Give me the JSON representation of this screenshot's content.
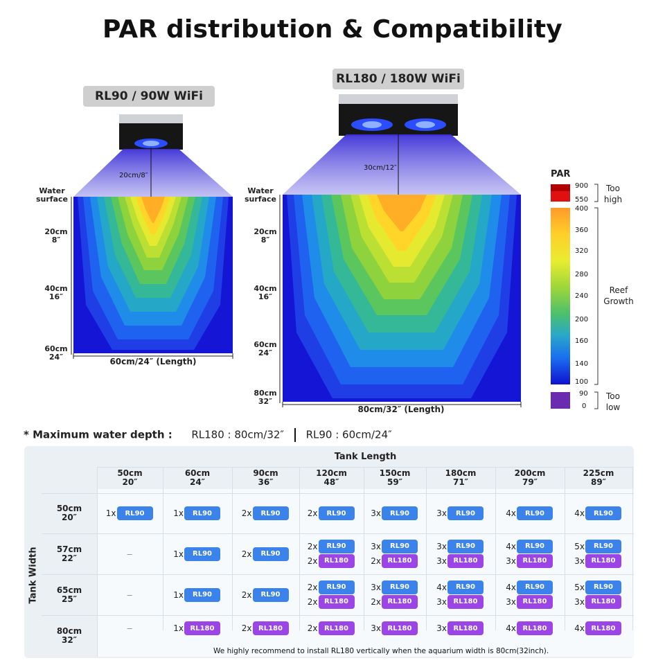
{
  "title": "PAR distribution & Compatibility",
  "left_panel": {
    "model_label": "RL90 / 90W WiFi",
    "beam_label": "20cm/8″",
    "surface_label": [
      "Water",
      "surface"
    ],
    "depth_labels": [
      [
        "20cm",
        "8″"
      ],
      [
        "40cm",
        "16″"
      ],
      [
        "60cm",
        "24″"
      ]
    ],
    "length_label": "60cm/24″ (Length)"
  },
  "right_panel": {
    "model_label": "RL180 / 180W WiFi",
    "beam_label": "30cm/12″",
    "surface_label": [
      "Water",
      "surface"
    ],
    "depth_labels": [
      [
        "20cm",
        "8″"
      ],
      [
        "40cm",
        "16″"
      ],
      [
        "60cm",
        "24″"
      ],
      [
        "80cm",
        "32″"
      ]
    ],
    "length_label": "80cm/32″ (Length)"
  },
  "legend": {
    "title": "PAR",
    "high_ticks": [
      "900",
      "550"
    ],
    "ticks": [
      "400",
      "360",
      "320",
      "280",
      "240",
      "200",
      "160",
      "140",
      "100"
    ],
    "low_ticks": [
      "90",
      "0"
    ],
    "too_high": [
      "Too",
      "high"
    ],
    "reef": [
      "Reef",
      "Growth"
    ],
    "too_low": [
      "Too",
      "low"
    ]
  },
  "depth_note": {
    "label": "* Maximum water depth :",
    "rl180": "RL180 : 80cm/32″",
    "rl90": "RL90 : 60cm/24″"
  },
  "table": {
    "length_header": "Tank Length",
    "width_header": "Tank Width",
    "columns": [
      [
        "50cm",
        "20″"
      ],
      [
        "60cm",
        "24″"
      ],
      [
        "90cm",
        "36″"
      ],
      [
        "120cm",
        "48″"
      ],
      [
        "150cm",
        "59″"
      ],
      [
        "180cm",
        "71″"
      ],
      [
        "200cm",
        "79″"
      ],
      [
        "225cm",
        "89″"
      ]
    ],
    "rows": [
      {
        "label": [
          "50cm",
          "20″"
        ],
        "cells": [
          [
            [
              "1x",
              "RL90"
            ]
          ],
          [
            [
              "1x",
              "RL90"
            ]
          ],
          [
            [
              "2x",
              "RL90"
            ]
          ],
          [
            [
              "2x",
              "RL90"
            ]
          ],
          [
            [
              "3x",
              "RL90"
            ]
          ],
          [
            [
              "3x",
              "RL90"
            ]
          ],
          [
            [
              "4x",
              "RL90"
            ]
          ],
          [
            [
              "4x",
              "RL90"
            ]
          ]
        ]
      },
      {
        "label": [
          "57cm",
          "22″"
        ],
        "cells": [
          [],
          [
            [
              "1x",
              "RL90"
            ]
          ],
          [
            [
              "2x",
              "RL90"
            ]
          ],
          [
            [
              "2x",
              "RL90"
            ],
            [
              "2x",
              "RL180"
            ]
          ],
          [
            [
              "3x",
              "RL90"
            ],
            [
              "2x",
              "RL180"
            ]
          ],
          [
            [
              "3x",
              "RL90"
            ],
            [
              "3x",
              "RL180"
            ]
          ],
          [
            [
              "4x",
              "RL90"
            ],
            [
              "3x",
              "RL180"
            ]
          ],
          [
            [
              "5x",
              "RL90"
            ],
            [
              "3x",
              "RL180"
            ]
          ]
        ]
      },
      {
        "label": [
          "65cm",
          "25″"
        ],
        "cells": [
          [],
          [
            [
              "1x",
              "RL90"
            ]
          ],
          [
            [
              "2x",
              "RL90"
            ]
          ],
          [
            [
              "2x",
              "RL90"
            ],
            [
              "2x",
              "RL180"
            ]
          ],
          [
            [
              "3x",
              "RL90"
            ],
            [
              "2x",
              "RL180"
            ]
          ],
          [
            [
              "4x",
              "RL90"
            ],
            [
              "3x",
              "RL180"
            ]
          ],
          [
            [
              "4x",
              "RL90"
            ],
            [
              "3x",
              "RL180"
            ]
          ],
          [
            [
              "5x",
              "RL90"
            ],
            [
              "3x",
              "RL180"
            ]
          ]
        ]
      },
      {
        "label": [
          "80cm",
          "32″"
        ],
        "cells": [
          [],
          [
            [
              "1x",
              "RL180"
            ]
          ],
          [
            [
              "2x",
              "RL180"
            ]
          ],
          [
            [
              "2x",
              "RL180"
            ]
          ],
          [
            [
              "3x",
              "RL180"
            ]
          ],
          [
            [
              "3x",
              "RL180"
            ]
          ],
          [
            [
              "4x",
              "RL180"
            ]
          ],
          [
            [
              "4x",
              "RL180"
            ]
          ]
        ]
      }
    ],
    "empty_mark": "–",
    "footnote": "We highly recommend to install RL180 vertically when the aquarium width is 80cm(32inch)."
  },
  "colors": {
    "rl90": "#3b82ea",
    "rl180": "#9b45e6",
    "deep": "#1b1bd8",
    "core": "#ffa020"
  }
}
